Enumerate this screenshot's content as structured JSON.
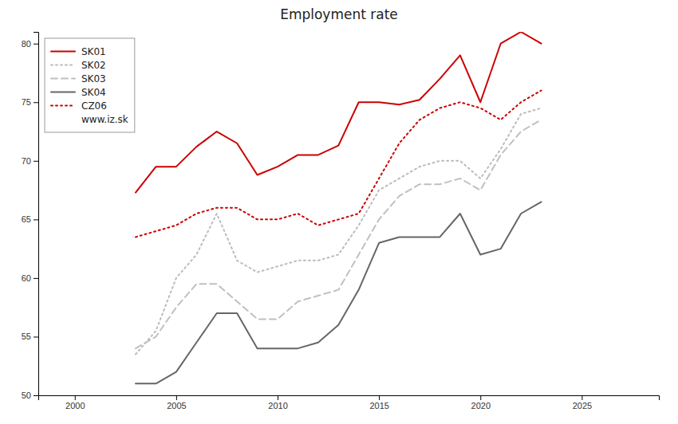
{
  "chart_data": {
    "type": "line",
    "title": "Employment rate",
    "x": [
      2003,
      2004,
      2005,
      2006,
      2007,
      2008,
      2009,
      2010,
      2011,
      2012,
      2013,
      2014,
      2015,
      2016,
      2017,
      2018,
      2019,
      2020,
      2021,
      2022,
      2023
    ],
    "xlim": [
      1998.2,
      2028.8
    ],
    "xticks": [
      2000,
      2005,
      2010,
      2015,
      2020,
      2025
    ],
    "ylim": [
      50,
      81
    ],
    "yticks": [
      50,
      55,
      60,
      65,
      70,
      75,
      80
    ],
    "grid": false,
    "legend": "upper left",
    "annotations": [
      "www.iz.sk"
    ],
    "series": [
      {
        "name": "SK01",
        "color": "#cc0000",
        "line_style": "solid",
        "values": [
          67.3,
          69.5,
          69.5,
          71.2,
          72.5,
          71.5,
          68.8,
          69.5,
          70.5,
          70.5,
          71.3,
          75.0,
          75.0,
          74.8,
          75.2,
          77.0,
          79.0,
          75.0,
          80.0,
          81.0,
          80.0
        ]
      },
      {
        "name": "SK02",
        "color": "#bbbbbb",
        "line_style": "dotted",
        "values": [
          53.5,
          55.5,
          60.0,
          62.0,
          65.5,
          61.5,
          60.5,
          61.0,
          61.5,
          61.5,
          62.0,
          64.5,
          67.5,
          68.5,
          69.5,
          70.0,
          70.0,
          68.5,
          71.0,
          74.0,
          74.5
        ]
      },
      {
        "name": "SK03",
        "color": "#c0c0c0",
        "line_style": "dashed",
        "values": [
          54.0,
          55.0,
          57.5,
          59.5,
          59.5,
          58.0,
          56.5,
          56.5,
          58.0,
          58.5,
          59.0,
          62.0,
          65.0,
          67.0,
          68.0,
          68.0,
          68.5,
          67.5,
          70.5,
          72.5,
          73.5
        ]
      },
      {
        "name": "SK04",
        "color": "#666666",
        "line_style": "solid",
        "values": [
          51.0,
          51.0,
          52.0,
          54.5,
          57.0,
          57.0,
          54.0,
          54.0,
          54.0,
          54.5,
          56.0,
          59.0,
          63.0,
          63.5,
          63.5,
          63.5,
          65.5,
          62.0,
          62.5,
          65.5,
          66.5
        ]
      },
      {
        "name": "CZ06",
        "color": "#cc0000",
        "line_style": "dotted",
        "values": [
          63.5,
          64.0,
          64.5,
          65.5,
          66.0,
          66.0,
          65.0,
          65.0,
          65.5,
          64.5,
          65.0,
          65.5,
          68.5,
          71.5,
          73.5,
          74.5,
          75.0,
          74.5,
          73.5,
          75.0,
          76.0
        ]
      }
    ]
  }
}
